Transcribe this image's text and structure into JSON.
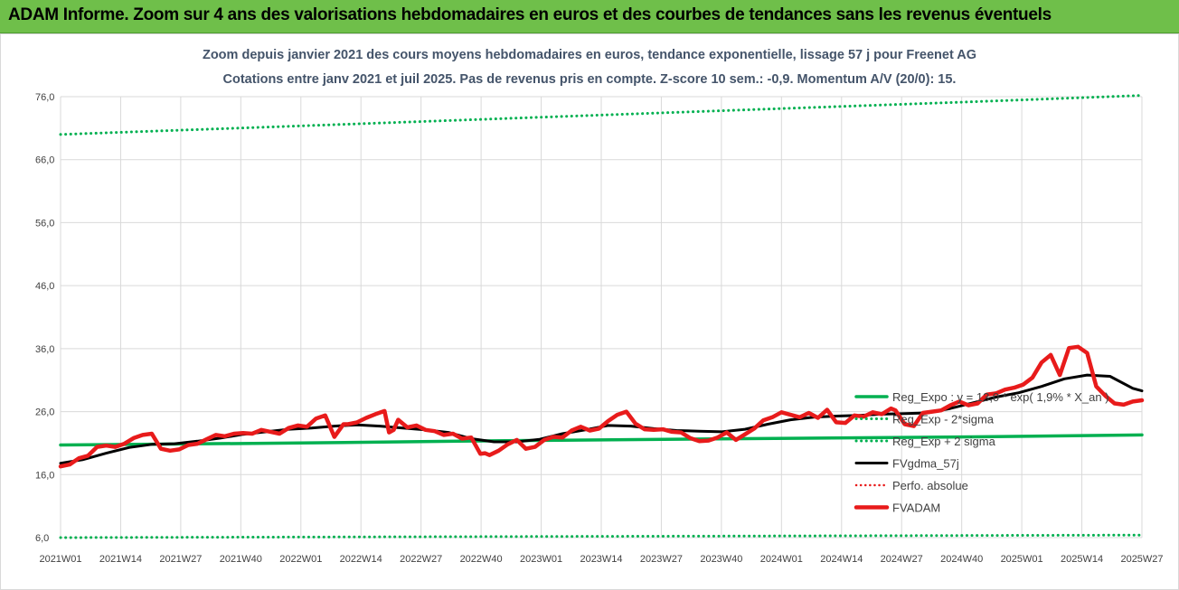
{
  "banner": {
    "text": "ADAM Informe. Zoom sur 4 ans des valorisations hebdomadaires en euros et des courbes de tendances sans les revenus éventuels"
  },
  "colors": {
    "banner": "#6fbf4a",
    "reg_expo": "#00b050",
    "fvgdma": "#000000",
    "fvadam": "#e81b1b",
    "perfo": "#e81b1b",
    "title": "#44546a"
  },
  "chart_data": {
    "type": "line",
    "title": "Zoom depuis janvier 2021 des cours moyens hebdomadaires en euros, tendance exponentielle, lissage 57 j pour Freenet AG",
    "subtitle": "Cotations entre janv 2021 et juil 2025. Pas de revenus pris en compte. Z-score 10 sem.: -0,9. Momentum A/V (20/0): 15.",
    "xlabel": "",
    "ylabel": "",
    "ylim": [
      6.0,
      76.0
    ],
    "yticks": [
      "76,0",
      "66,0",
      "56,0",
      "46,0",
      "36,0",
      "26,0",
      "16,0",
      "6,0"
    ],
    "xticks": [
      "2021W01",
      "2021W14",
      "2021W27",
      "2021W40",
      "2022W01",
      "2022W14",
      "2022W27",
      "2022W40",
      "2023W01",
      "2023W14",
      "2023W27",
      "2023W40",
      "2024W01",
      "2024W14",
      "2024W27",
      "2024W40",
      "2025W01",
      "2025W14",
      "2025W27"
    ],
    "grid": true,
    "legend_position": "right",
    "x_range_weeks": [
      0,
      237
    ],
    "series": [
      {
        "name": "Reg_Expo : y = 13,0 * exp( 1,9% *  X_an )",
        "style": "solid-green",
        "x": [
          0,
          50,
          100,
          150,
          200,
          237
        ],
        "values": [
          20.7,
          21.0,
          21.4,
          21.7,
          22.0,
          22.3
        ]
      },
      {
        "name": "Reg_Exp - 2*sigma",
        "style": "dotted-green",
        "x": [
          0,
          60,
          120,
          180,
          237
        ],
        "values": [
          6.0,
          6.1,
          6.2,
          6.3,
          6.4
        ]
      },
      {
        "name": "Reg_Exp + 2 sigma",
        "style": "dotted-green",
        "x": [
          0,
          50,
          100,
          150,
          200,
          237
        ],
        "values": [
          70.0,
          71.3,
          72.6,
          73.9,
          75.2,
          76.2
        ]
      },
      {
        "name": "FVgdma_57j",
        "style": "solid-black",
        "x": [
          0,
          5,
          10,
          15,
          20,
          25,
          30,
          35,
          40,
          45,
          50,
          55,
          60,
          65,
          70,
          75,
          80,
          85,
          90,
          95,
          100,
          105,
          110,
          115,
          120,
          125,
          130,
          135,
          140,
          145,
          150,
          155,
          160,
          165,
          170,
          175,
          180,
          185,
          190,
          195,
          200,
          205,
          210,
          215,
          220,
          225,
          230,
          235,
          237
        ],
        "values": [
          17.8,
          18.4,
          19.4,
          20.3,
          20.8,
          20.9,
          21.3,
          21.8,
          22.4,
          22.8,
          23.2,
          23.4,
          23.7,
          23.9,
          23.7,
          23.4,
          23.1,
          22.7,
          21.7,
          21.2,
          21.2,
          21.6,
          22.5,
          23.1,
          23.8,
          23.7,
          23.3,
          23.0,
          22.9,
          22.8,
          23.2,
          24.0,
          24.7,
          25.1,
          25.3,
          25.4,
          25.6,
          25.7,
          25.8,
          26.5,
          27.4,
          28.3,
          29.0,
          30.0,
          31.2,
          31.8,
          31.6,
          29.7,
          29.3
        ]
      },
      {
        "name": "Perfo. absolue",
        "style": "dotted-red",
        "x": [],
        "values": []
      },
      {
        "name": "FVADAM",
        "style": "solid-red",
        "x": [
          0,
          2,
          4,
          6,
          8,
          10,
          12,
          14,
          16,
          18,
          20,
          22,
          24,
          26,
          28,
          30,
          32,
          34,
          36,
          38,
          40,
          42,
          44,
          46,
          48,
          50,
          52,
          54,
          56,
          58,
          60,
          62,
          63,
          65,
          67,
          69,
          71,
          72,
          73,
          74,
          76,
          78,
          80,
          82,
          84,
          86,
          88,
          90,
          92,
          93,
          94,
          96,
          98,
          100,
          102,
          104,
          106,
          108,
          110,
          112,
          114,
          116,
          118,
          120,
          122,
          124,
          126,
          128,
          130,
          132,
          134,
          136,
          138,
          140,
          142,
          144,
          146,
          148,
          150,
          152,
          154,
          156,
          158,
          160,
          162,
          164,
          166,
          168,
          170,
          172,
          174,
          176,
          178,
          180,
          182,
          183,
          185,
          187,
          189,
          191,
          193,
          195,
          197,
          199,
          201,
          203,
          205,
          207,
          209,
          211,
          213,
          215,
          217,
          219,
          221,
          223,
          225,
          227,
          229,
          231,
          233,
          235,
          237
        ],
        "values": [
          17.3,
          17.6,
          18.6,
          19.0,
          20.4,
          20.6,
          20.4,
          20.9,
          21.8,
          22.3,
          22.5,
          20.1,
          19.8,
          20.0,
          20.7,
          20.9,
          21.6,
          22.3,
          22.1,
          22.5,
          22.6,
          22.5,
          23.1,
          22.8,
          22.5,
          23.4,
          23.8,
          23.6,
          24.9,
          25.4,
          22.0,
          24.0,
          24.0,
          24.3,
          25.0,
          25.6,
          26.1,
          22.7,
          23.1,
          24.7,
          23.5,
          23.8,
          23.1,
          22.9,
          22.3,
          22.5,
          21.7,
          21.9,
          19.3,
          19.4,
          19.1,
          19.8,
          20.8,
          21.5,
          20.1,
          20.4,
          21.5,
          22.0,
          21.9,
          23.0,
          23.6,
          23.0,
          23.3,
          24.5,
          25.5,
          26.0,
          24.1,
          23.2,
          23.1,
          23.2,
          22.8,
          22.7,
          21.8,
          21.3,
          21.4,
          21.9,
          22.7,
          21.5,
          22.4,
          23.3,
          24.6,
          25.1,
          25.9,
          25.5,
          25.1,
          25.8,
          25.0,
          26.3,
          24.3,
          24.2,
          25.4,
          25.2,
          25.9,
          25.6,
          26.5,
          26.2,
          24.0,
          23.7,
          25.8,
          26.0,
          26.2,
          27.0,
          27.6,
          27.0,
          27.3,
          28.7,
          28.9,
          29.5,
          29.8,
          30.3,
          31.4,
          33.8,
          35.0,
          31.8,
          36.1,
          36.3,
          35.3,
          30.0,
          28.5,
          27.3,
          27.1,
          27.6,
          27.8
        ]
      }
    ]
  }
}
